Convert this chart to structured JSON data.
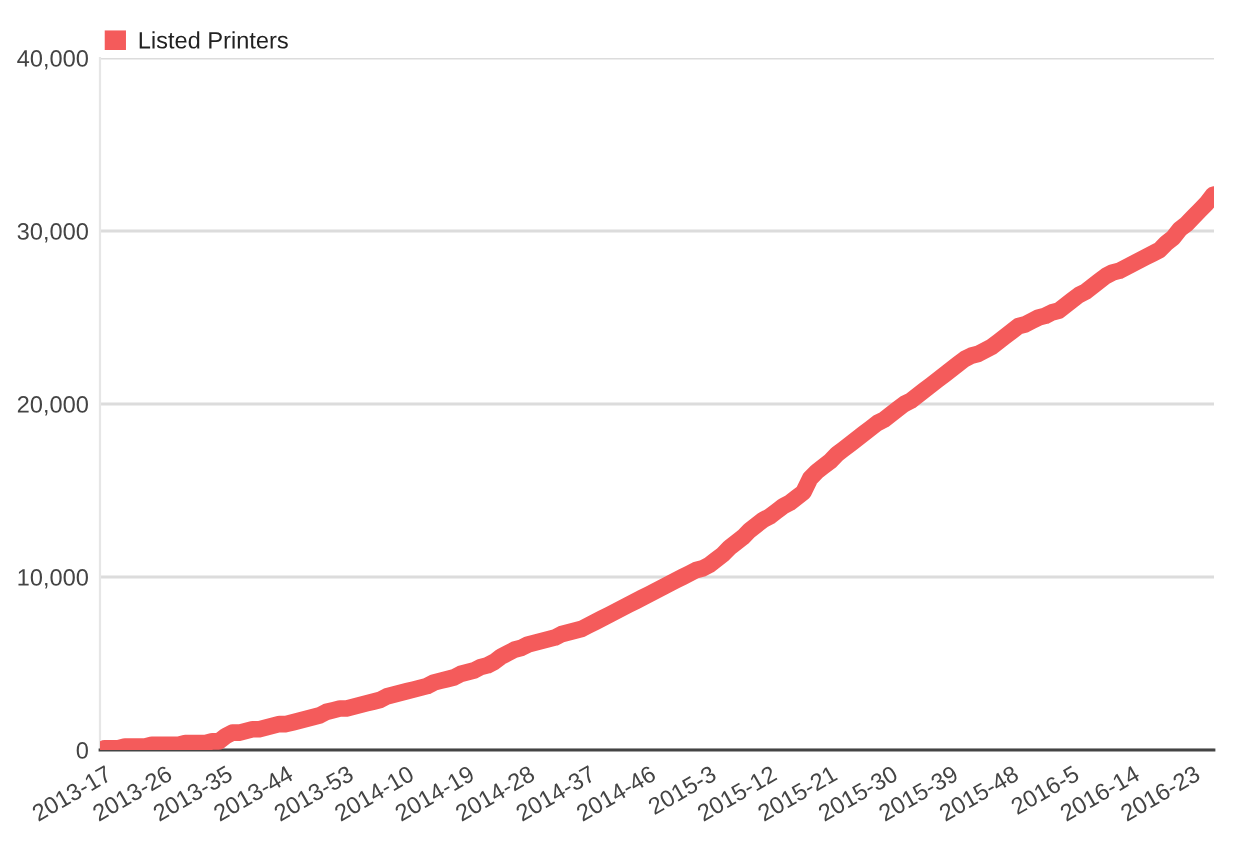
{
  "chart_data": {
    "type": "line",
    "categories": [
      "2013-17",
      null,
      null,
      null,
      null,
      null,
      null,
      null,
      null,
      "2013-26",
      null,
      null,
      null,
      null,
      null,
      null,
      null,
      null,
      "2013-35",
      null,
      null,
      null,
      null,
      null,
      null,
      null,
      null,
      "2013-44",
      null,
      null,
      null,
      null,
      null,
      null,
      null,
      null,
      "2013-53",
      null,
      null,
      null,
      null,
      null,
      null,
      null,
      null,
      "2014-10",
      null,
      null,
      null,
      null,
      null,
      null,
      null,
      null,
      "2014-19",
      null,
      null,
      null,
      null,
      null,
      null,
      null,
      null,
      "2014-28",
      null,
      null,
      null,
      null,
      null,
      null,
      null,
      null,
      "2014-37",
      null,
      null,
      null,
      null,
      null,
      null,
      null,
      null,
      "2014-46",
      null,
      null,
      null,
      null,
      null,
      null,
      null,
      null,
      "2015-3",
      null,
      null,
      null,
      null,
      null,
      null,
      null,
      null,
      "2015-12",
      null,
      null,
      null,
      null,
      null,
      null,
      null,
      null,
      "2015-21",
      null,
      null,
      null,
      null,
      null,
      null,
      null,
      null,
      "2015-30",
      null,
      null,
      null,
      null,
      null,
      null,
      null,
      null,
      "2015-39",
      null,
      null,
      null,
      null,
      null,
      null,
      null,
      null,
      "2015-48",
      null,
      null,
      null,
      null,
      null,
      null,
      null,
      null,
      "2016-5",
      null,
      null,
      null,
      null,
      null,
      null,
      null,
      null,
      "2016-14",
      null,
      null,
      null,
      null,
      null,
      null,
      null,
      null,
      "2016-23",
      null,
      null,
      null
    ],
    "series": [
      {
        "name": "Listed Printers",
        "color": "#f45b5b",
        "values": [
          100,
          100,
          100,
          200,
          200,
          200,
          200,
          300,
          300,
          300,
          300,
          300,
          400,
          400,
          400,
          400,
          500,
          500,
          800,
          1000,
          1000,
          1100,
          1200,
          1200,
          1300,
          1400,
          1500,
          1500,
          1600,
          1700,
          1800,
          1900,
          2000,
          2200,
          2300,
          2400,
          2400,
          2500,
          2600,
          2700,
          2800,
          2900,
          3100,
          3200,
          3300,
          3400,
          3500,
          3600,
          3700,
          3900,
          4000,
          4100,
          4200,
          4400,
          4500,
          4600,
          4800,
          4900,
          5100,
          5400,
          5600,
          5800,
          5900,
          6100,
          6200,
          6300,
          6400,
          6500,
          6700,
          6800,
          6900,
          7000,
          7200,
          7400,
          7600,
          7800,
          8000,
          8200,
          8400,
          8600,
          8800,
          9000,
          9200,
          9400,
          9600,
          9800,
          10000,
          10200,
          10400,
          10500,
          10700,
          11000,
          11300,
          11700,
          12000,
          12300,
          12700,
          13000,
          13300,
          13500,
          13800,
          14100,
          14300,
          14600,
          14900,
          15700,
          16100,
          16400,
          16700,
          17100,
          17400,
          17700,
          18000,
          18300,
          18600,
          18900,
          19100,
          19400,
          19700,
          20000,
          20200,
          20500,
          20800,
          21100,
          21400,
          21700,
          22000,
          22300,
          22600,
          22800,
          22900,
          23100,
          23300,
          23600,
          23900,
          24200,
          24500,
          24600,
          24800,
          25000,
          25100,
          25300,
          25400,
          25700,
          26000,
          26300,
          26500,
          26800,
          27100,
          27400,
          27600,
          27700,
          27900,
          28100,
          28300,
          28500,
          28700,
          28900,
          29300,
          29600,
          30100,
          30400,
          30800,
          31200,
          31600,
          32100
        ]
      }
    ],
    "ylim": [
      0,
      40000
    ],
    "yticks": [
      0,
      {
        "value": 10000,
        "label": "10,000"
      },
      {
        "value": 20000,
        "label": "20,000"
      },
      {
        "value": 30000,
        "label": "30,000"
      },
      {
        "value": 40000,
        "label": "40,000"
      }
    ],
    "grid": "y",
    "legend": "top left",
    "line_style": "solid"
  }
}
